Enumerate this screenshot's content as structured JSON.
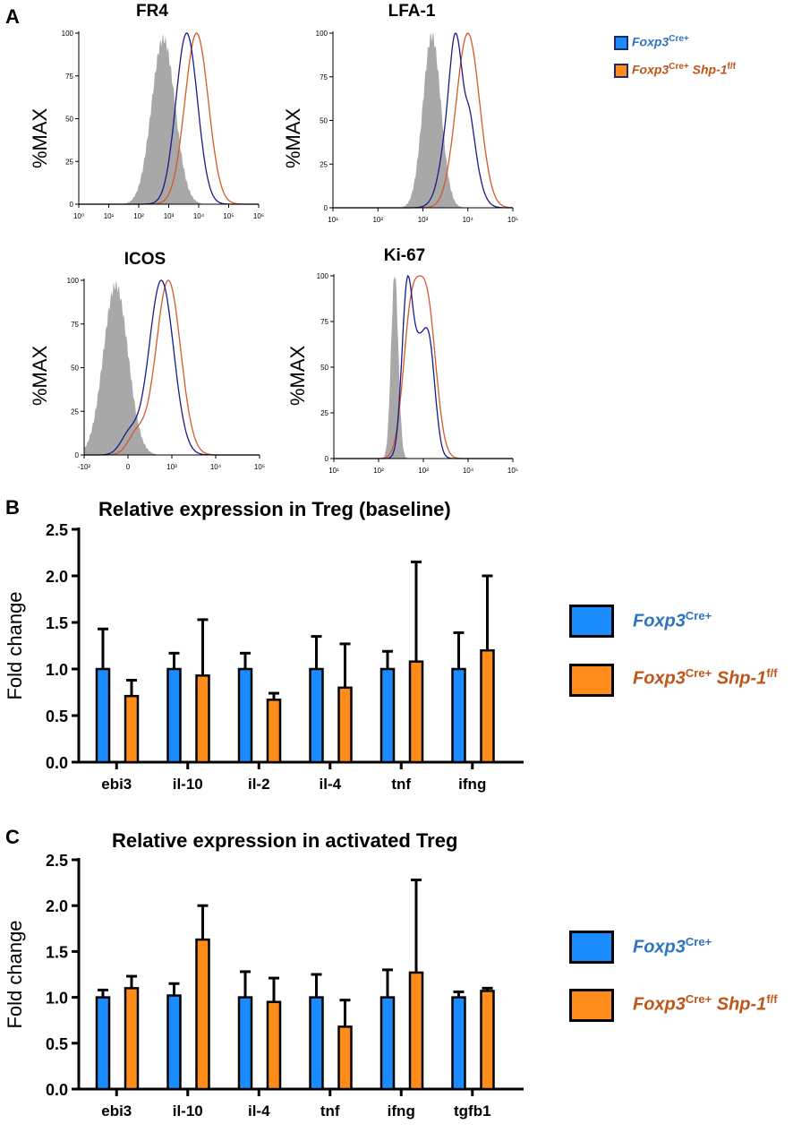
{
  "panels": {
    "a": "A",
    "b": "B",
    "c": "C"
  },
  "colors": {
    "foxp3_hist": "#1a1a8a",
    "shp1_hist": "#d45a2a",
    "isotype_fill": "#a8a8a8",
    "foxp3_bar": "#1a8cff",
    "shp1_bar": "#ff8c1a",
    "foxp3_text": "#2e74c0",
    "shp1_text": "#c0551a"
  },
  "legend_top": {
    "items": [
      {
        "name": "Foxp3",
        "sup": "Cre+",
        "name2": "",
        "sup2": ""
      },
      {
        "name": "Foxp3",
        "sup": "Cre+",
        "name2": " Shp-1",
        "sup2": "f/f"
      }
    ]
  },
  "histograms": [
    {
      "title": "FR4",
      "ylabel": "%MAX",
      "yticks": [
        "0",
        "25",
        "50",
        "75",
        "100"
      ],
      "xticks": [
        "10⁰",
        "10¹",
        "10²",
        "10³",
        "10⁴",
        "10⁵",
        "10⁶"
      ]
    },
    {
      "title": "LFA-1",
      "ylabel": "%MAX",
      "yticks": [
        "0",
        "25",
        "50",
        "75",
        "100"
      ],
      "xticks": [
        "10¹",
        "10²",
        "10³",
        "10⁴",
        "10⁵"
      ]
    },
    {
      "title": "ICOS",
      "ylabel": "%MAX",
      "yticks": [
        "0",
        "25",
        "50",
        "75",
        "100"
      ],
      "xticks": [
        "-10²",
        "0",
        "10³",
        "10⁴",
        "10⁵"
      ]
    },
    {
      "title": "Ki-67",
      "ylabel": "%MAX",
      "yticks": [
        "0",
        "25",
        "50",
        "75",
        "100"
      ],
      "xticks": [
        "10¹",
        "10²",
        "10³",
        "10⁴",
        "10⁵"
      ]
    }
  ],
  "chart_data": [
    {
      "type": "bar",
      "title": "Relative expression in Treg (baseline)",
      "ylabel": "Fold change",
      "xlabel": "",
      "ylim": [
        0,
        2.5
      ],
      "yticks": [
        "0.0",
        "0.5",
        "1.0",
        "1.5",
        "2.0",
        "2.5"
      ],
      "categories": [
        "ebi3",
        "il-10",
        "il-2",
        "il-4",
        "tnf",
        "ifng"
      ],
      "series": [
        {
          "name": "Foxp3Cre+",
          "values": [
            1.0,
            1.0,
            1.0,
            1.0,
            1.0,
            1.0
          ],
          "errors": [
            0.43,
            0.17,
            0.17,
            0.35,
            0.19,
            0.39
          ]
        },
        {
          "name": "Foxp3Cre+ Shp-1f/f",
          "values": [
            0.71,
            0.93,
            0.67,
            0.8,
            1.08,
            1.2
          ],
          "errors": [
            0.17,
            0.6,
            0.07,
            0.47,
            1.07,
            0.8
          ]
        }
      ],
      "legend": [
        {
          "name": "Foxp3",
          "sup": "Cre+",
          "name2": "",
          "sup2": ""
        },
        {
          "name": "Foxp3",
          "sup": "Cre+",
          "name2": " Shp-1",
          "sup2": "f/f"
        }
      ]
    },
    {
      "type": "bar",
      "title": "Relative expression in activated Treg",
      "ylabel": "Fold change",
      "xlabel": "",
      "ylim": [
        0,
        2.5
      ],
      "yticks": [
        "0.0",
        "0.5",
        "1.0",
        "1.5",
        "2.0",
        "2.5"
      ],
      "categories": [
        "ebi3",
        "il-10",
        "il-4",
        "tnf",
        "ifng",
        "tgfb1"
      ],
      "series": [
        {
          "name": "Foxp3Cre+",
          "values": [
            1.0,
            1.02,
            1.0,
            1.0,
            1.0,
            1.0
          ],
          "errors": [
            0.08,
            0.13,
            0.28,
            0.25,
            0.3,
            0.06
          ]
        },
        {
          "name": "Foxp3Cre+ Shp-1f/f",
          "values": [
            1.1,
            1.63,
            0.95,
            0.68,
            1.27,
            1.07
          ],
          "errors": [
            0.13,
            0.37,
            0.26,
            0.29,
            1.01,
            0.03
          ]
        }
      ],
      "legend": [
        {
          "name": "Foxp3",
          "sup": "Cre+",
          "name2": "",
          "sup2": ""
        },
        {
          "name": "Foxp3",
          "sup": "Cre+",
          "name2": " Shp-1",
          "sup2": "f/f"
        }
      ]
    }
  ]
}
